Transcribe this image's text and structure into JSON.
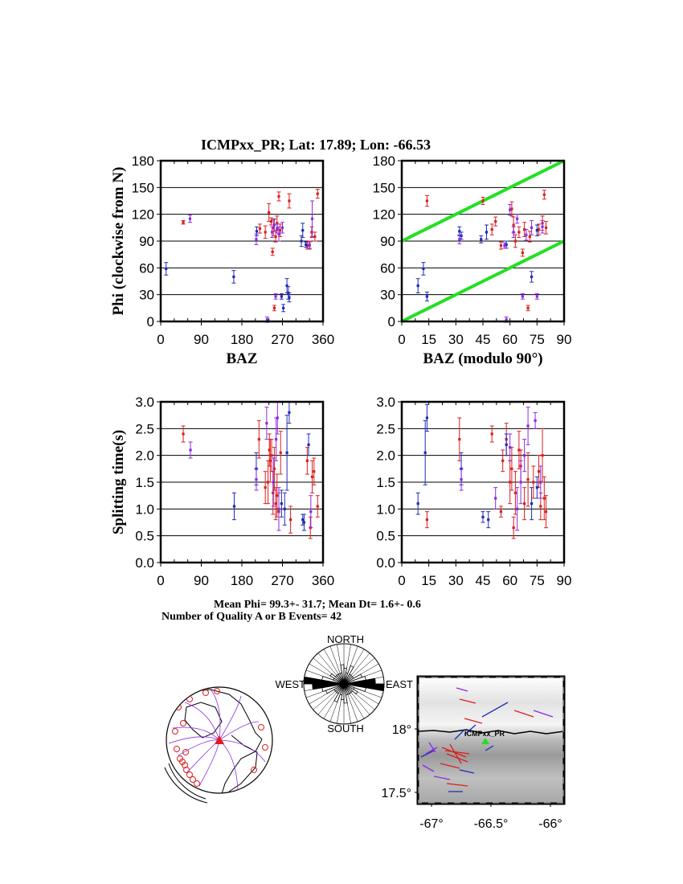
{
  "header": {
    "title": "ICMPxx_PR; Lat:  17.89;  Lon:  -66.53"
  },
  "stats": {
    "line1": "Mean Phi= 99.3+- 31.7; Mean Dt=  1.6+-  0.6",
    "line2": "Number of Quality A or B Events= 42"
  },
  "colors": {
    "red": "#dd1f1f",
    "blue": "#1f2bb8",
    "purple": "#8a2be2",
    "green": "#22e022",
    "grid": "#000000"
  },
  "chart_data": [
    {
      "type": "scatter",
      "id": "phi-vs-baz",
      "xlabel": "BAZ",
      "ylabel": "Phi (clockwise from N)",
      "xlim": [
        0,
        360
      ],
      "ylim": [
        0,
        180
      ],
      "xticks": [
        "0",
        "90",
        "180",
        "270",
        "360"
      ],
      "yticks": [
        "0",
        "30",
        "60",
        "90",
        "120",
        "150",
        "180"
      ],
      "grid": "horizontal",
      "series": [
        {
          "color": "red",
          "points": [
            [
              50,
              111,
              2
            ],
            [
              245,
              112,
              4
            ],
            [
              248,
              78,
              4
            ],
            [
              252,
              15,
              3
            ],
            [
              262,
              140,
              5
            ],
            [
              220,
              104,
              5
            ],
            [
              232,
              100,
              7
            ],
            [
              240,
              122,
              10
            ],
            [
              250,
              105,
              9
            ],
            [
              255,
              95,
              6
            ],
            [
              258,
              110,
              8
            ],
            [
              265,
              102,
              7
            ],
            [
              285,
              135,
              8
            ],
            [
              325,
              85,
              4
            ],
            [
              330,
              86,
              4
            ],
            [
              335,
              100,
              6
            ],
            [
              342,
              95,
              5
            ],
            [
              348,
              143,
              5
            ]
          ]
        },
        {
          "color": "blue",
          "points": [
            [
              12,
              59,
              7
            ],
            [
              162,
              50,
              7
            ],
            [
              213,
              101,
              5
            ],
            [
              268,
              28,
              3
            ],
            [
              272,
              15,
              4
            ],
            [
              280,
              40,
              8
            ],
            [
              283,
              32,
              7
            ],
            [
              285,
              27,
              5
            ],
            [
              312,
              90,
              6
            ],
            [
              315,
              102,
              8
            ],
            [
              322,
              86,
              3
            ]
          ]
        },
        {
          "color": "purple",
          "points": [
            [
              65,
              115,
              4
            ],
            [
              212,
              92,
              6
            ],
            [
              236,
              2,
              3
            ],
            [
              247,
              100,
              6
            ],
            [
              252,
              108,
              7
            ],
            [
              255,
              28,
              3
            ],
            [
              258,
              104,
              5
            ],
            [
              262,
              98,
              8
            ],
            [
              270,
              105,
              6
            ],
            [
              330,
              85,
              4
            ],
            [
              336,
              115,
              20
            ]
          ]
        }
      ]
    },
    {
      "type": "scatter",
      "id": "phi-vs-baz-mod90",
      "xlabel": "BAZ (modulo 90°)",
      "ylabel": "",
      "xlim": [
        0,
        90
      ],
      "ylim": [
        0,
        180
      ],
      "xticks": [
        "0",
        "15",
        "30",
        "45",
        "60",
        "75",
        "90"
      ],
      "yticks": [
        "0",
        "30",
        "60",
        "90",
        "120",
        "150",
        "180"
      ],
      "grid": "horizontal",
      "reference_lines": [
        {
          "color": "green",
          "from": [
            0,
            0
          ],
          "to": [
            90,
            90
          ]
        },
        {
          "color": "green",
          "from": [
            0,
            90
          ],
          "to": [
            90,
            180
          ]
        }
      ],
      "series": [
        {
          "color": "red",
          "points": [
            [
              14,
              135,
              6
            ],
            [
              50,
              103,
              6
            ],
            [
              52,
              112,
              5
            ],
            [
              55,
              85,
              4
            ],
            [
              61,
              126,
              8
            ],
            [
              62,
              108,
              9
            ],
            [
              63,
              90,
              7
            ],
            [
              65,
              100,
              6
            ],
            [
              67,
              77,
              4
            ],
            [
              68,
              103,
              8
            ],
            [
              70,
              15,
              3
            ],
            [
              71,
              95,
              6
            ],
            [
              76,
              103,
              6
            ],
            [
              78,
              110,
              8
            ],
            [
              79,
              142,
              5
            ],
            [
              80,
              105,
              7
            ],
            [
              45,
              135,
              4
            ]
          ]
        },
        {
          "color": "blue",
          "points": [
            [
              9,
              40,
              8
            ],
            [
              12,
              59,
              7
            ],
            [
              14,
              28,
              5
            ],
            [
              32,
              101,
              5
            ],
            [
              33,
              96,
              4
            ],
            [
              44,
              92,
              4
            ],
            [
              47,
              100,
              8
            ],
            [
              58,
              86,
              4
            ],
            [
              72,
              50,
              6
            ],
            [
              75,
              102,
              6
            ]
          ]
        },
        {
          "color": "purple",
          "points": [
            [
              32,
              92,
              5
            ],
            [
              57,
              85,
              3
            ],
            [
              58,
              2,
              3
            ],
            [
              60,
              125,
              6
            ],
            [
              62,
              100,
              6
            ],
            [
              64,
              115,
              5
            ],
            [
              67,
              28,
              3
            ],
            [
              69,
              97,
              6
            ],
            [
              72,
              105,
              8
            ],
            [
              75,
              28,
              3
            ],
            [
              78,
              106,
              7
            ]
          ]
        }
      ]
    },
    {
      "type": "scatter",
      "id": "dt-vs-baz",
      "xlabel": "",
      "ylabel": "Splitting time(s)",
      "xlim": [
        0,
        360
      ],
      "ylim": [
        0,
        3
      ],
      "xticks": [
        "0",
        "90",
        "180",
        "270",
        "360"
      ],
      "yticks": [
        "0.0",
        "0.5",
        "1.0",
        "1.5",
        "2.0",
        "2.5",
        "3.0"
      ],
      "grid": "horizontal",
      "series": [
        {
          "color": "red",
          "points": [
            [
              50,
              2.4,
              0.15
            ],
            [
              218,
              2.3,
              0.35
            ],
            [
              232,
              1.4,
              0.3
            ],
            [
              238,
              1.5,
              0.4
            ],
            [
              241,
              2.1,
              0.3
            ],
            [
              243,
              1.9,
              0.4
            ],
            [
              246,
              2.0,
              0.3
            ],
            [
              249,
              1.3,
              0.4
            ],
            [
              252,
              1.75,
              0.4
            ],
            [
              255,
              1.1,
              0.3
            ],
            [
              258,
              1.25,
              0.4
            ],
            [
              262,
              0.95,
              0.35
            ],
            [
              266,
              2.05,
              0.4
            ],
            [
              288,
              0.8,
              0.25
            ],
            [
              325,
              1.9,
              0.25
            ],
            [
              332,
              0.65,
              0.2
            ],
            [
              336,
              1.6,
              0.3
            ],
            [
              348,
              1.05,
              0.2
            ],
            [
              340,
              1.7,
              0.25
            ]
          ]
        },
        {
          "color": "blue",
          "points": [
            [
              163,
              1.05,
              0.25
            ],
            [
              212,
              1.75,
              0.3
            ],
            [
              268,
              1.1,
              0.25
            ],
            [
              275,
              1.0,
              0.3
            ],
            [
              280,
              2.05,
              0.7
            ],
            [
              285,
              2.8,
              0.2
            ],
            [
              315,
              0.8,
              0.1
            ],
            [
              318,
              0.75,
              0.15
            ],
            [
              328,
              2.2,
              0.2
            ]
          ]
        },
        {
          "color": "purple",
          "points": [
            [
              66,
              2.1,
              0.15
            ],
            [
              212,
              1.55,
              0.2
            ],
            [
              235,
              2.6,
              0.3
            ],
            [
              250,
              1.5,
              0.45
            ],
            [
              256,
              2.3,
              0.4
            ],
            [
              259,
              2.7,
              0.3
            ],
            [
              262,
              1.0,
              0.4
            ],
            [
              333,
              0.95,
              0.3
            ]
          ]
        }
      ]
    },
    {
      "type": "scatter",
      "id": "dt-vs-baz-mod90",
      "xlabel": "",
      "ylabel": "",
      "xlim": [
        0,
        90
      ],
      "ylim": [
        0,
        3
      ],
      "xticks": [
        "0",
        "15",
        "30",
        "45",
        "60",
        "75",
        "90"
      ],
      "yticks": [
        "0.0",
        "0.5",
        "1.0",
        "1.5",
        "2.0",
        "2.5",
        "3.0"
      ],
      "grid": "horizontal",
      "series": [
        {
          "color": "red",
          "points": [
            [
              14,
              0.8,
              0.15
            ],
            [
              32,
              2.3,
              0.4
            ],
            [
              50,
              2.4,
              0.15
            ],
            [
              55,
              0.95,
              0.1
            ],
            [
              56,
              1.9,
              0.2
            ],
            [
              58,
              2.3,
              0.3
            ],
            [
              60,
              1.5,
              0.4
            ],
            [
              61,
              1.75,
              0.4
            ],
            [
              62,
              0.65,
              0.2
            ],
            [
              63,
              1.3,
              0.4
            ],
            [
              65,
              2.1,
              0.35
            ],
            [
              66,
              1.8,
              0.3
            ],
            [
              68,
              1.1,
              0.3
            ],
            [
              70,
              1.55,
              0.5
            ],
            [
              73,
              1.5,
              0.3
            ],
            [
              76,
              1.7,
              0.3
            ],
            [
              77,
              1.05,
              0.25
            ],
            [
              79,
              1.2,
              0.4
            ],
            [
              80,
              0.95,
              0.3
            ],
            [
              78,
              2.0,
              0.5
            ]
          ]
        },
        {
          "color": "blue",
          "points": [
            [
              9,
              1.1,
              0.2
            ],
            [
              13,
              2.05,
              0.6
            ],
            [
              14,
              2.7,
              0.25
            ],
            [
              33,
              1.75,
              0.3
            ],
            [
              45,
              0.85,
              0.1
            ],
            [
              48,
              0.8,
              0.15
            ],
            [
              58,
              2.2,
              0.2
            ],
            [
              72,
              1.1,
              0.3
            ],
            [
              75,
              1.4,
              0.2
            ]
          ]
        },
        {
          "color": "purple",
          "points": [
            [
              33,
              1.55,
              0.2
            ],
            [
              52,
              1.2,
              0.2
            ],
            [
              60,
              2.15,
              0.25
            ],
            [
              64,
              1.0,
              0.4
            ],
            [
              66,
              1.5,
              0.4
            ],
            [
              68,
              2.0,
              0.3
            ],
            [
              70,
              2.55,
              0.35
            ],
            [
              74,
              2.65,
              0.15
            ],
            [
              77,
              1.5,
              0.3
            ]
          ]
        }
      ]
    },
    {
      "type": "rose",
      "id": "phi-rose",
      "labels": {
        "north": "NORTH",
        "south": "SOUTH",
        "east": "EAST",
        "west": "WEST"
      },
      "bins_deg": 10,
      "counts": [
        2,
        1,
        3,
        1,
        1,
        1,
        3,
        4,
        8,
        13,
        4,
        1,
        2,
        1,
        1,
        1,
        1,
        3
      ]
    },
    {
      "type": "map",
      "id": "event-globe",
      "marker": "station triangle (red)"
    },
    {
      "type": "map",
      "id": "station-map",
      "station_label": "ICMPxx_PR",
      "xticks": [
        "-67°",
        "-66.5°",
        "-66°"
      ],
      "yticks": [
        "18°",
        "17.5°"
      ]
    }
  ]
}
